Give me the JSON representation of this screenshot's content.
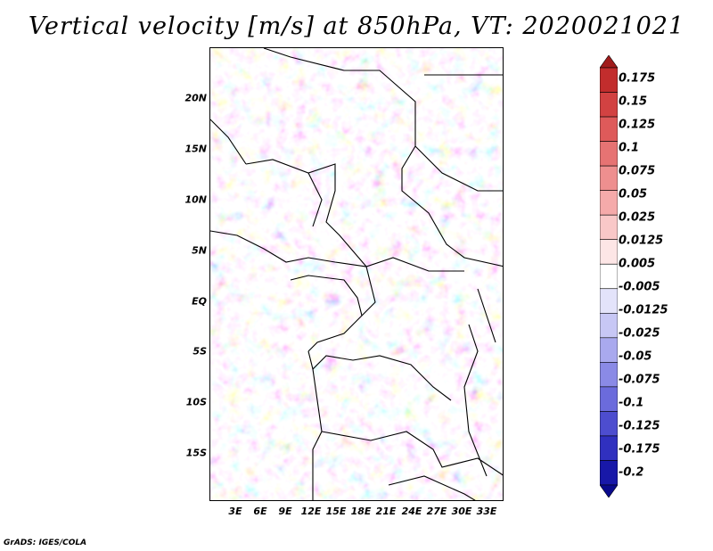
{
  "title": "Vertical velocity [m/s] at 850hPa, VT: 2020021021",
  "credit": "GrADS: IGES/COLA",
  "latitude_labels": [
    "20N",
    "15N",
    "10N",
    "5N",
    "EQ",
    "5S",
    "10S",
    "15S"
  ],
  "longitude_labels": [
    "3E",
    "6E",
    "9E",
    "12E",
    "15E",
    "18E",
    "21E",
    "24E",
    "27E",
    "30E",
    "33E"
  ],
  "colorbar": {
    "labels": [
      "0.175",
      "0.15",
      "0.125",
      "0.1",
      "0.075",
      "0.05",
      "0.025",
      "0.0125",
      "0.005",
      "-0.005",
      "-0.0125",
      "-0.025",
      "-0.05",
      "-0.075",
      "-0.1",
      "-0.125",
      "-0.175",
      "-0.2"
    ],
    "colors": [
      "#a01c1c",
      "#c22d2d",
      "#d24242",
      "#de5a5a",
      "#e67373",
      "#ee8f8f",
      "#f5aaaa",
      "#f9c8c8",
      "#fde6e6",
      "#ffffff",
      "#e3e3fa",
      "#c7c7f5",
      "#a9a9ee",
      "#8a8ae6",
      "#6b6bdc",
      "#4d4dcf",
      "#3030bf",
      "#1818a8",
      "#0a0a8c"
    ]
  }
}
